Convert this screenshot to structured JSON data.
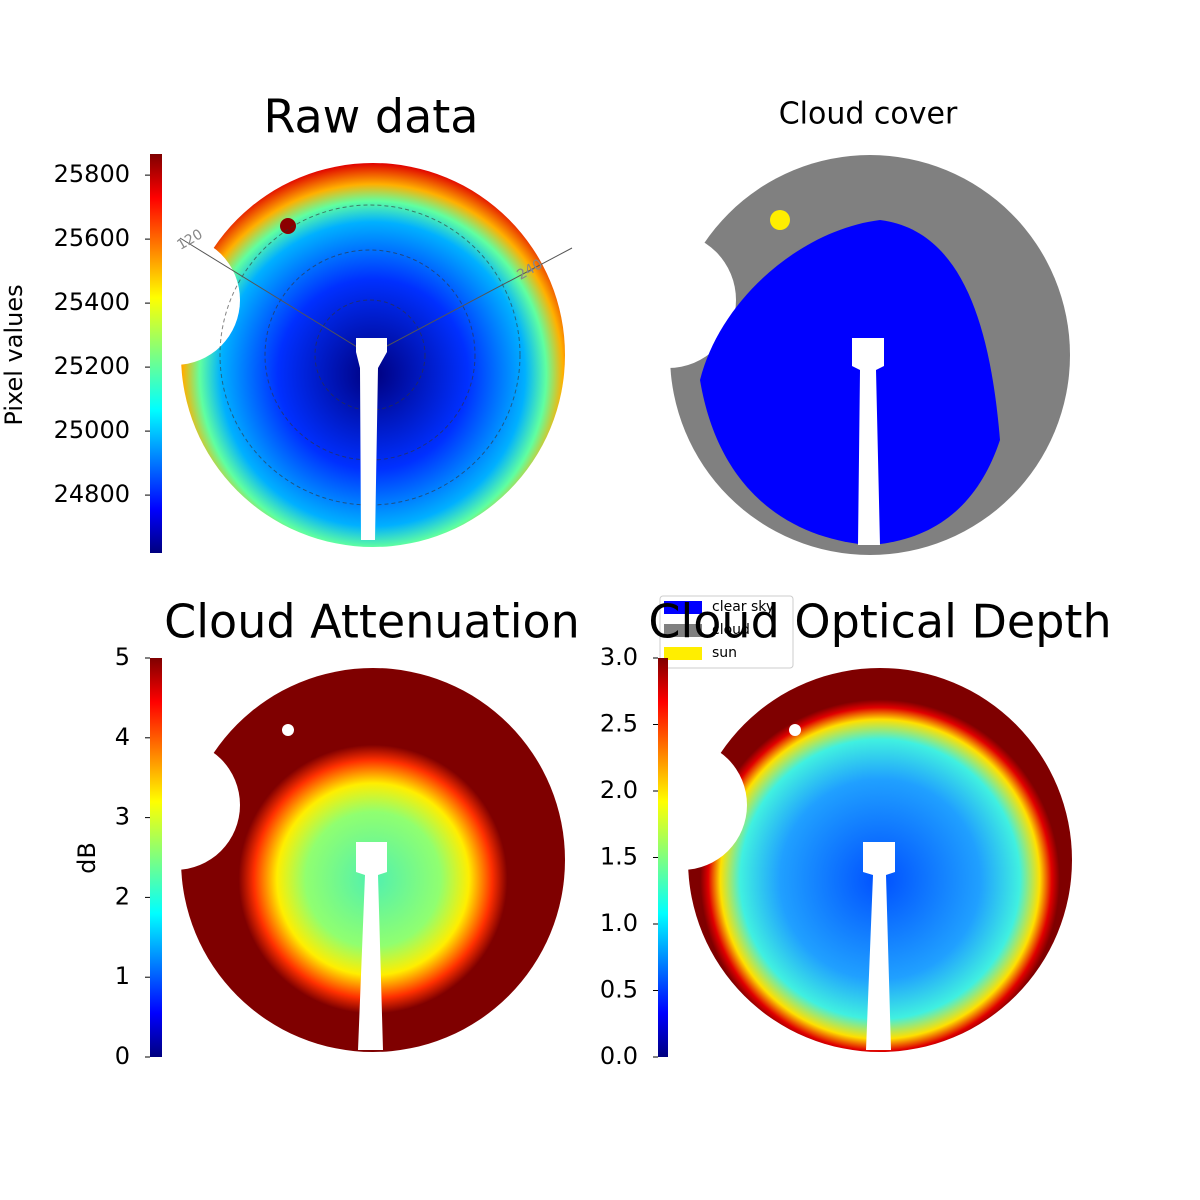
{
  "chart_data": [
    {
      "type": "image",
      "title": "Raw data",
      "ylabel": "Pixel values",
      "colormap": "jet",
      "ylim": [
        24619,
        25866
      ],
      "yticks": [
        24800,
        25000,
        25200,
        25400,
        25600,
        25800
      ],
      "annotations": [
        "120",
        "240"
      ]
    },
    {
      "type": "image",
      "title": "Cloud cover",
      "legend": [
        {
          "name": "clear sky",
          "color": "#0000ff"
        },
        {
          "name": "cloud",
          "color": "#808080"
        },
        {
          "name": "sun",
          "color": "#ffee00"
        }
      ]
    },
    {
      "type": "image",
      "title": "Cloud Attenuation",
      "ylabel": "dB",
      "colormap": "jet",
      "ylim": [
        0,
        5
      ],
      "yticks": [
        0,
        1,
        2,
        3,
        4,
        5
      ]
    },
    {
      "type": "image",
      "title": "Cloud Optical Depth",
      "colormap": "jet",
      "ylim": [
        0,
        3
      ],
      "yticks": [
        {
          "value": 0,
          "label": "0.0"
        },
        {
          "value": 0.5,
          "label": "0.5"
        },
        {
          "value": 1,
          "label": "1.0"
        },
        {
          "value": 1.5,
          "label": "1.5"
        },
        {
          "value": 2,
          "label": "2.0"
        },
        {
          "value": 2.5,
          "label": "2.5"
        },
        {
          "value": 3,
          "label": "3.0"
        }
      ]
    }
  ]
}
